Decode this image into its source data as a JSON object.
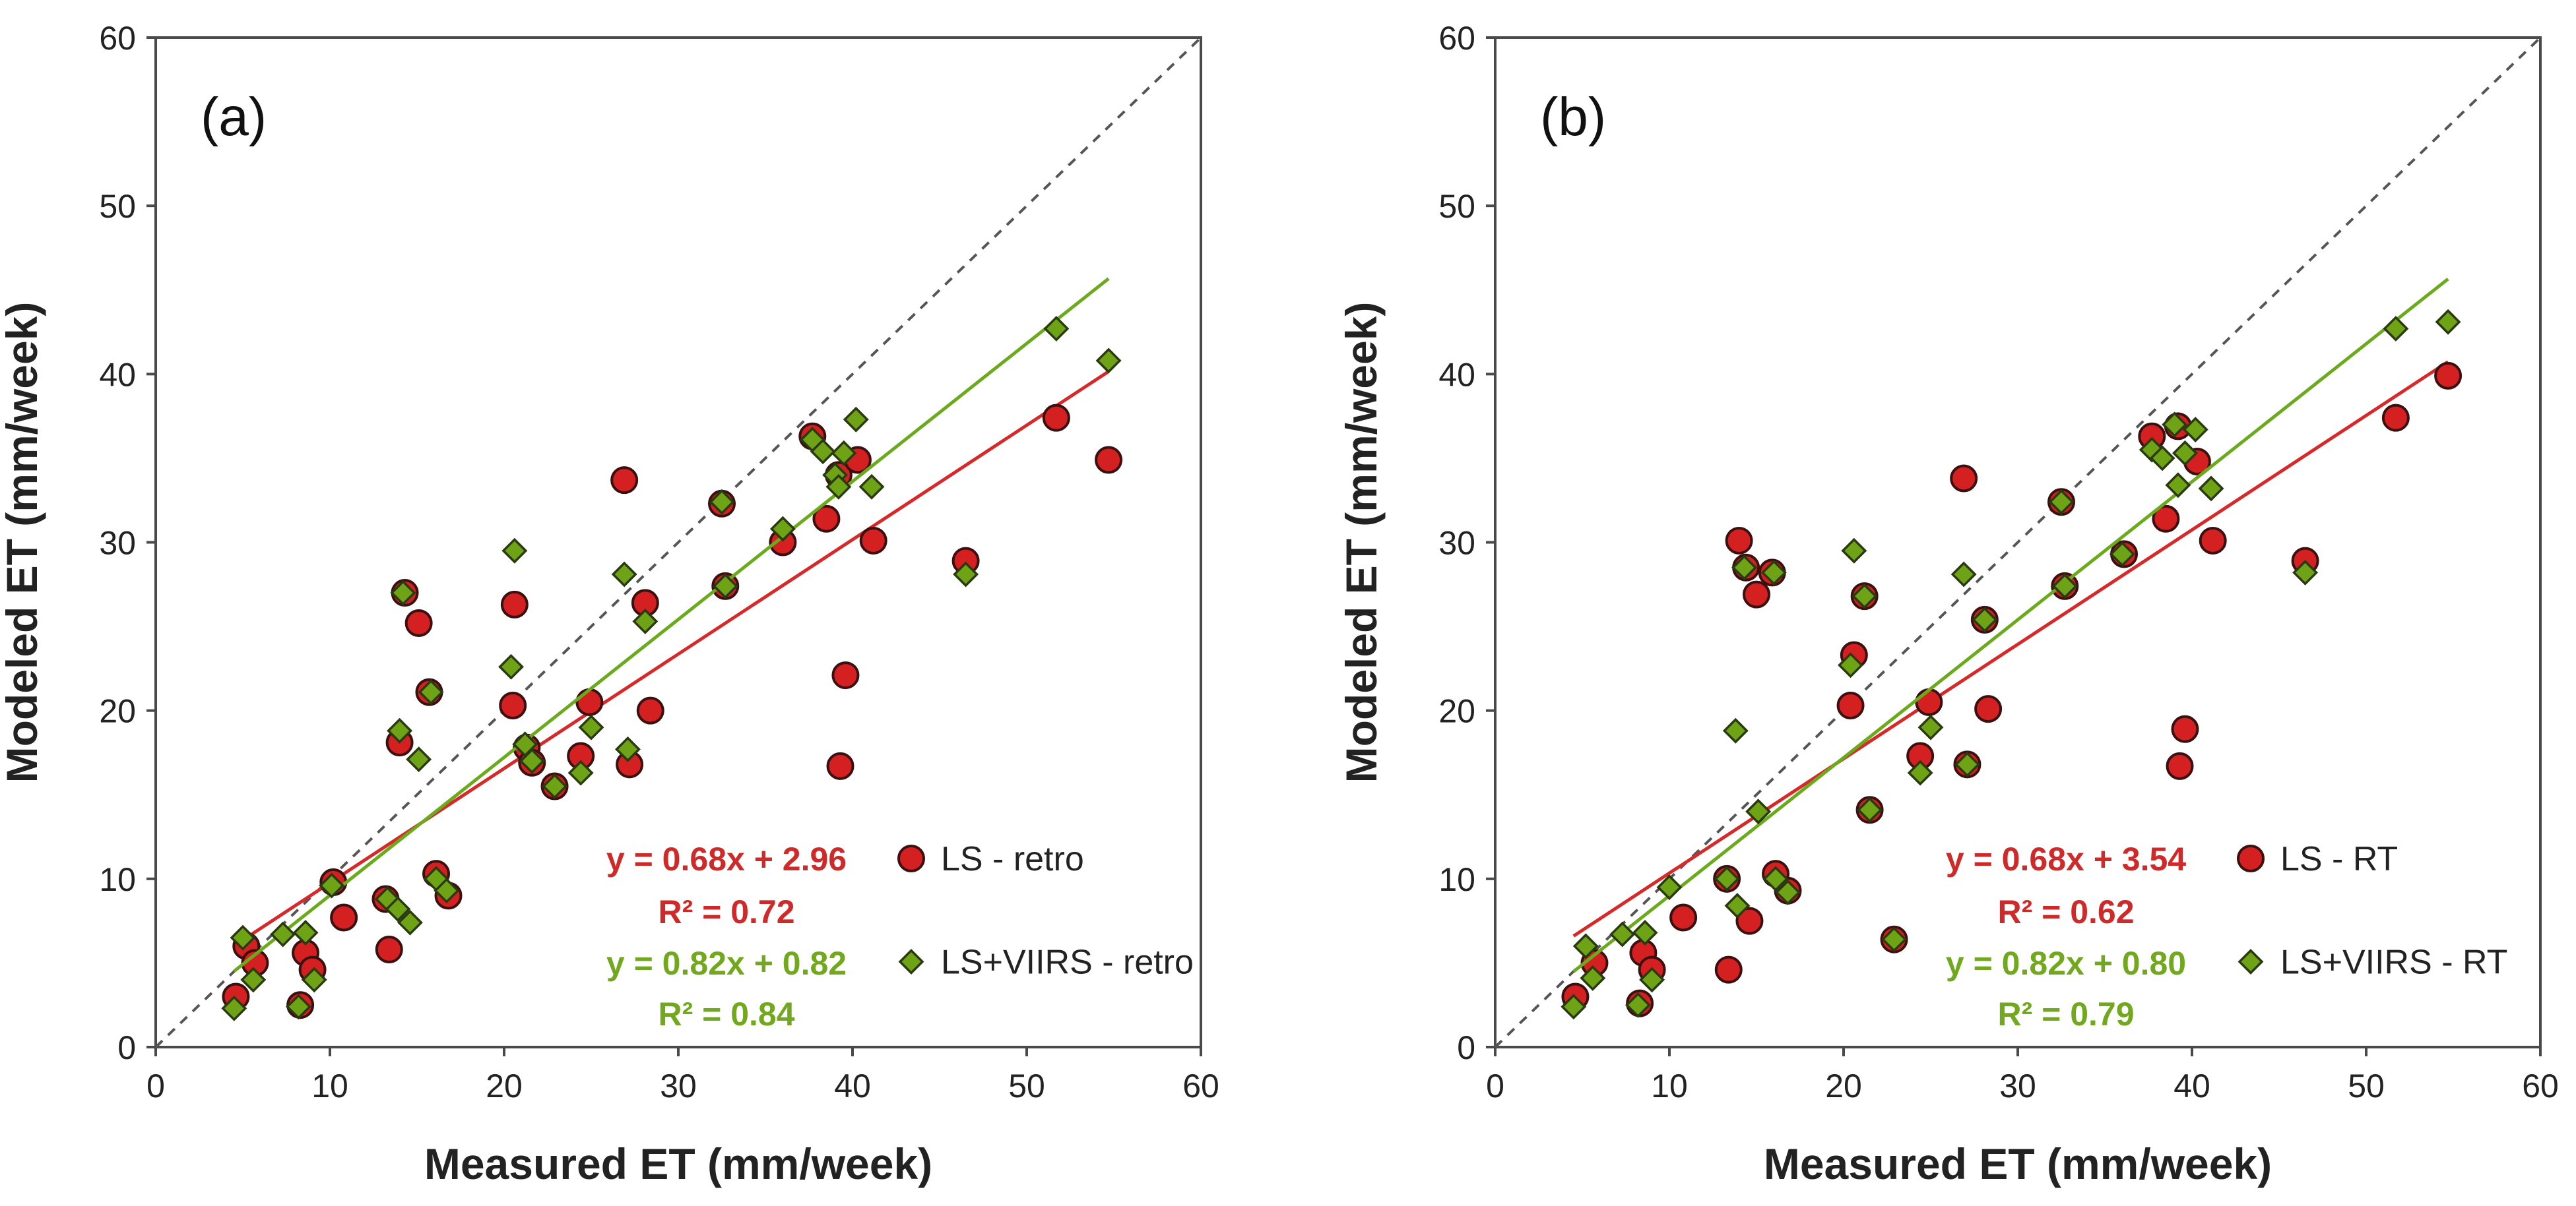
{
  "colors": {
    "red": "#d42020",
    "green": "#6fa316",
    "redLine": "#d62a2a",
    "greenLine": "#6aaa1c",
    "eqRed": "#cf2a2a",
    "eqGreen": "#72a81e",
    "border": "#4a4a4a"
  },
  "chart_data": [
    {
      "type": "scatter",
      "panel_label": "(a)",
      "xlabel": "Measured ET (mm/week)",
      "ylabel": "Modeled ET (mm/week)",
      "xlim": [
        0,
        60
      ],
      "ylim": [
        0,
        60
      ],
      "xticks": [
        "0",
        "10",
        "20",
        "30",
        "40",
        "50",
        "60"
      ],
      "yticks": [
        "0",
        "10",
        "20",
        "30",
        "40",
        "50",
        "60"
      ],
      "one_to_one_line": true,
      "series": [
        {
          "name": "LS - retro",
          "marker": "circle",
          "color": "red",
          "equation": "y = 0.68x + 2.96",
          "r2": "R² = 0.72",
          "fit": {
            "slope": 0.68,
            "intercept": 2.96,
            "x_range": [
              4.5,
              54.7
            ]
          },
          "points": [
            [
              4.6,
              3.0
            ],
            [
              5.2,
              6.0
            ],
            [
              5.7,
              5.0
            ],
            [
              8.3,
              2.5
            ],
            [
              8.6,
              5.6
            ],
            [
              9.0,
              4.6
            ],
            [
              10.2,
              9.8
            ],
            [
              10.8,
              7.7
            ],
            [
              13.2,
              8.8
            ],
            [
              13.4,
              5.8
            ],
            [
              14.0,
              18.1
            ],
            [
              14.3,
              27.0
            ],
            [
              15.1,
              25.2
            ],
            [
              15.7,
              21.1
            ],
            [
              16.1,
              10.3
            ],
            [
              16.8,
              9.0
            ],
            [
              20.5,
              20.3
            ],
            [
              20.6,
              26.3
            ],
            [
              21.3,
              17.8
            ],
            [
              21.6,
              16.9
            ],
            [
              22.9,
              15.5
            ],
            [
              24.4,
              17.3
            ],
            [
              24.9,
              20.5
            ],
            [
              26.9,
              33.7
            ],
            [
              27.2,
              16.8
            ],
            [
              28.1,
              26.4
            ],
            [
              28.4,
              20.0
            ],
            [
              32.5,
              32.3
            ],
            [
              32.7,
              27.4
            ],
            [
              36.0,
              30.0
            ],
            [
              37.7,
              36.3
            ],
            [
              38.5,
              31.4
            ],
            [
              39.2,
              34.0
            ],
            [
              39.3,
              16.7
            ],
            [
              39.6,
              22.1
            ],
            [
              40.3,
              34.9
            ],
            [
              41.2,
              30.1
            ],
            [
              46.5,
              28.9
            ],
            [
              51.7,
              37.4
            ],
            [
              54.7,
              34.9
            ]
          ]
        },
        {
          "name": "LS+VIIRS - retro",
          "marker": "diamond",
          "color": "green",
          "equation": "y = 0.82x + 0.82",
          "r2": "R² = 0.84",
          "fit": {
            "slope": 0.82,
            "intercept": 0.82,
            "x_range": [
              4.5,
              54.7
            ]
          },
          "points": [
            [
              4.5,
              2.3
            ],
            [
              5.0,
              6.5
            ],
            [
              5.6,
              4.0
            ],
            [
              7.3,
              6.7
            ],
            [
              8.2,
              2.4
            ],
            [
              8.6,
              6.8
            ],
            [
              9.1,
              4.0
            ],
            [
              10.1,
              9.6
            ],
            [
              13.3,
              8.8
            ],
            [
              13.9,
              8.2
            ],
            [
              14.0,
              18.8
            ],
            [
              14.2,
              27.0
            ],
            [
              14.6,
              7.4
            ],
            [
              15.1,
              17.1
            ],
            [
              15.8,
              21.1
            ],
            [
              16.1,
              10.0
            ],
            [
              16.7,
              9.3
            ],
            [
              20.4,
              22.6
            ],
            [
              20.6,
              29.5
            ],
            [
              21.2,
              18.0
            ],
            [
              21.6,
              17.0
            ],
            [
              22.9,
              15.5
            ],
            [
              24.4,
              16.3
            ],
            [
              25.0,
              19.0
            ],
            [
              26.9,
              28.1
            ],
            [
              27.1,
              17.7
            ],
            [
              28.1,
              25.3
            ],
            [
              32.5,
              32.4
            ],
            [
              32.7,
              27.4
            ],
            [
              36.0,
              30.8
            ],
            [
              37.7,
              36.1
            ],
            [
              38.3,
              35.4
            ],
            [
              39.0,
              34.0
            ],
            [
              39.2,
              33.3
            ],
            [
              39.5,
              35.3
            ],
            [
              40.2,
              37.3
            ],
            [
              41.1,
              33.3
            ],
            [
              46.5,
              28.1
            ],
            [
              51.7,
              42.7
            ],
            [
              54.7,
              40.8
            ]
          ]
        }
      ]
    },
    {
      "type": "scatter",
      "panel_label": "(b)",
      "xlabel": "Measured ET (mm/week)",
      "ylabel": "Modeled ET (mm/week)",
      "xlim": [
        0,
        60
      ],
      "ylim": [
        0,
        60
      ],
      "xticks": [
        "0",
        "10",
        "20",
        "30",
        "40",
        "50",
        "60"
      ],
      "yticks": [
        "0",
        "10",
        "20",
        "30",
        "40",
        "50",
        "60"
      ],
      "one_to_one_line": true,
      "series": [
        {
          "name": "LS - RT",
          "marker": "circle",
          "color": "red",
          "equation": "y = 0.68x + 3.54",
          "r2": "R² = 0.62",
          "fit": {
            "slope": 0.68,
            "intercept": 3.54,
            "x_range": [
              4.5,
              54.7
            ]
          },
          "points": [
            [
              4.6,
              3.0
            ],
            [
              5.7,
              5.0
            ],
            [
              8.3,
              2.6
            ],
            [
              8.5,
              5.6
            ],
            [
              9.0,
              4.6
            ],
            [
              10.8,
              7.7
            ],
            [
              13.3,
              10.0
            ],
            [
              13.4,
              4.6
            ],
            [
              14.0,
              30.1
            ],
            [
              14.4,
              28.5
            ],
            [
              14.6,
              7.5
            ],
            [
              15.0,
              26.9
            ],
            [
              15.9,
              28.2
            ],
            [
              16.1,
              10.3
            ],
            [
              16.8,
              9.3
            ],
            [
              20.4,
              20.3
            ],
            [
              20.6,
              23.3
            ],
            [
              21.2,
              26.8
            ],
            [
              21.5,
              14.1
            ],
            [
              22.9,
              6.4
            ],
            [
              24.4,
              17.3
            ],
            [
              24.9,
              20.5
            ],
            [
              26.9,
              33.8
            ],
            [
              27.1,
              16.8
            ],
            [
              28.1,
              25.4
            ],
            [
              28.3,
              20.1
            ],
            [
              32.5,
              32.4
            ],
            [
              32.7,
              27.4
            ],
            [
              36.1,
              29.3
            ],
            [
              37.7,
              36.3
            ],
            [
              38.5,
              31.4
            ],
            [
              39.2,
              36.9
            ],
            [
              39.3,
              16.7
            ],
            [
              39.6,
              18.9
            ],
            [
              40.3,
              34.8
            ],
            [
              41.2,
              30.1
            ],
            [
              46.5,
              28.9
            ],
            [
              51.7,
              37.4
            ],
            [
              54.7,
              39.9
            ]
          ]
        },
        {
          "name": "LS+VIIRS - RT",
          "marker": "diamond",
          "color": "green",
          "equation": "y = 0.82x + 0.80",
          "r2": "R² = 0.79",
          "fit": {
            "slope": 0.82,
            "intercept": 0.8,
            "x_range": [
              4.5,
              54.7
            ]
          },
          "points": [
            [
              4.5,
              2.4
            ],
            [
              5.2,
              6.0
            ],
            [
              5.6,
              4.1
            ],
            [
              7.3,
              6.7
            ],
            [
              8.2,
              2.5
            ],
            [
              8.6,
              6.8
            ],
            [
              9.0,
              4.0
            ],
            [
              10.0,
              9.5
            ],
            [
              13.3,
              10.0
            ],
            [
              13.8,
              18.8
            ],
            [
              13.9,
              8.4
            ],
            [
              14.3,
              28.5
            ],
            [
              15.1,
              14.0
            ],
            [
              16.0,
              28.2
            ],
            [
              16.1,
              10.0
            ],
            [
              16.8,
              9.2
            ],
            [
              20.4,
              22.7
            ],
            [
              20.6,
              29.5
            ],
            [
              21.2,
              26.8
            ],
            [
              21.5,
              14.1
            ],
            [
              22.9,
              6.4
            ],
            [
              24.4,
              16.3
            ],
            [
              25.0,
              19.0
            ],
            [
              26.9,
              28.1
            ],
            [
              27.1,
              16.8
            ],
            [
              28.1,
              25.4
            ],
            [
              32.5,
              32.4
            ],
            [
              32.7,
              27.4
            ],
            [
              36.0,
              29.3
            ],
            [
              37.7,
              35.5
            ],
            [
              38.3,
              35.0
            ],
            [
              39.0,
              37.0
            ],
            [
              39.2,
              33.4
            ],
            [
              39.6,
              35.3
            ],
            [
              40.2,
              36.7
            ],
            [
              41.1,
              33.2
            ],
            [
              46.5,
              28.2
            ],
            [
              51.7,
              42.7
            ],
            [
              54.7,
              43.1
            ]
          ]
        }
      ]
    }
  ]
}
